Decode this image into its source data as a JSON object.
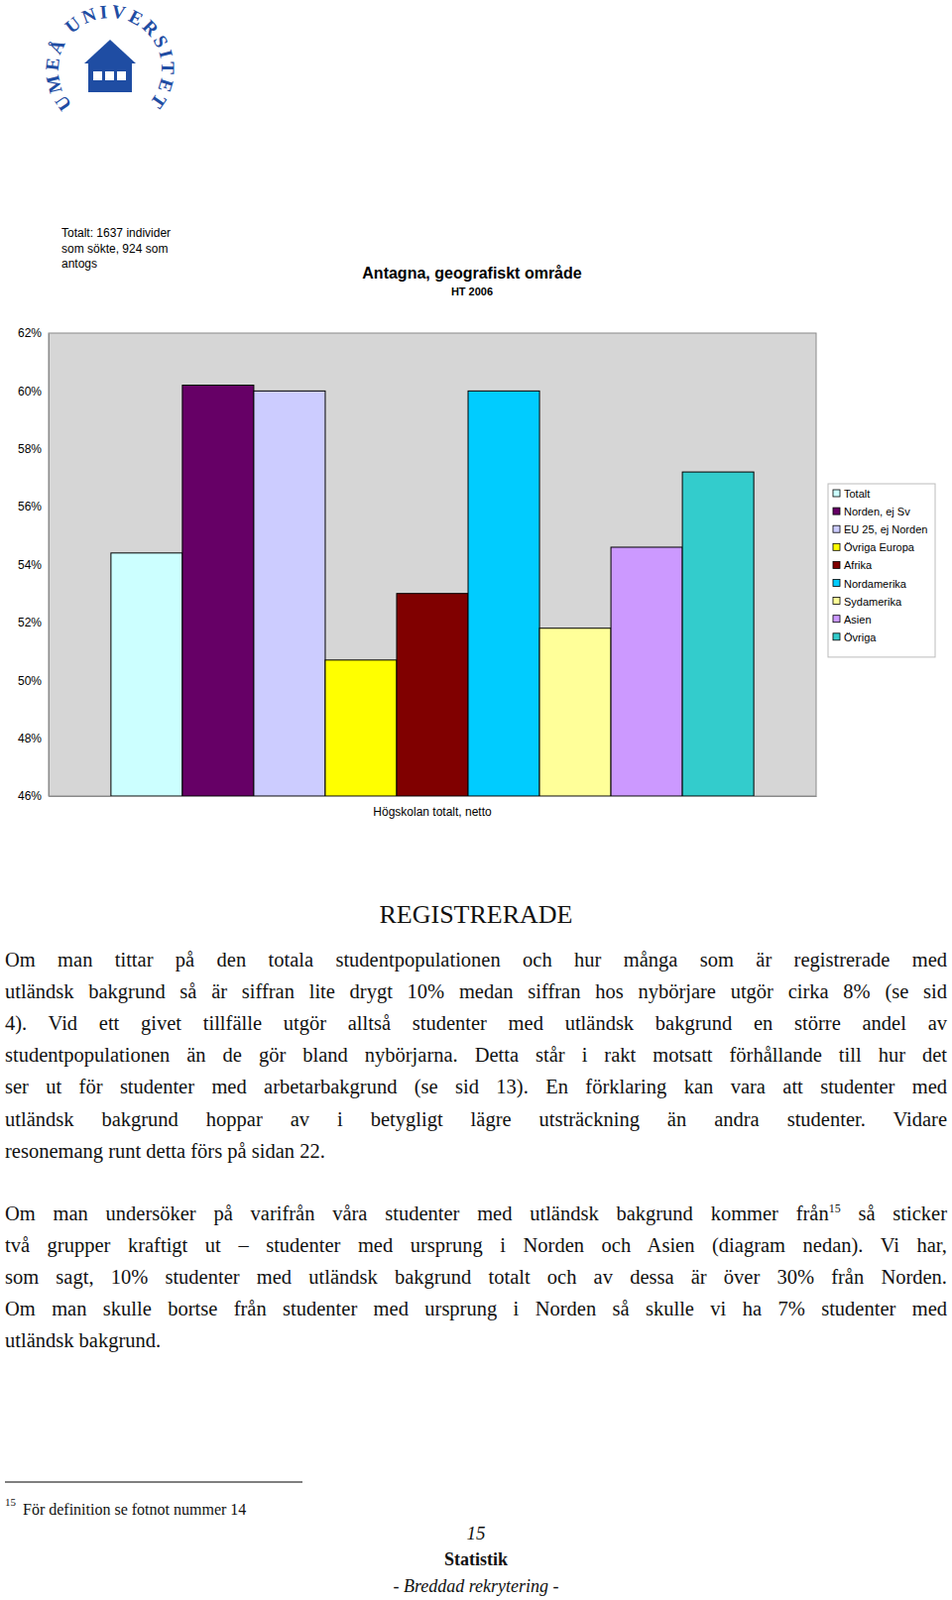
{
  "header": {
    "logo_text": "UMEÅ UNIVERSITET"
  },
  "chart_data": {
    "type": "bar",
    "title": "Antagna, geografiskt område",
    "subtitle": "HT 2006",
    "annotations": [
      "Totalt: 1637 individer",
      "som sökte, 924 som",
      "antogs"
    ],
    "categories": [
      "Högskolan totalt, netto"
    ],
    "series": [
      {
        "name": "Totalt",
        "color": "#ccffff",
        "values": [
          54.4
        ]
      },
      {
        "name": "Norden, ej Sv",
        "color": "#660066",
        "values": [
          60.2
        ]
      },
      {
        "name": "EU 25, ej Norden",
        "color": "#ccccff",
        "values": [
          60.0
        ]
      },
      {
        "name": "Övriga Europa",
        "color": "#ffff00",
        "values": [
          50.7
        ]
      },
      {
        "name": "Afrika",
        "color": "#800000",
        "values": [
          53.0
        ]
      },
      {
        "name": "Nordamerika",
        "color": "#00ccff",
        "values": [
          60.0
        ]
      },
      {
        "name": "Sydamerika",
        "color": "#ffff99",
        "values": [
          51.8
        ]
      },
      {
        "name": "Asien",
        "color": "#cc99ff",
        "values": [
          54.6
        ]
      },
      {
        "name": "Övriga",
        "color": "#33cccc",
        "values": [
          57.2
        ]
      }
    ],
    "ylim": [
      46,
      62
    ],
    "yticks": [
      {
        "value": 46,
        "label": "46%"
      },
      {
        "value": 48,
        "label": "48%"
      },
      {
        "value": 50,
        "label": "50%"
      },
      {
        "value": 52,
        "label": "52%"
      },
      {
        "value": 54,
        "label": "54%"
      },
      {
        "value": 56,
        "label": "56%"
      },
      {
        "value": 58,
        "label": "58%"
      },
      {
        "value": 60,
        "label": "60%"
      },
      {
        "value": 62,
        "label": "62%"
      }
    ],
    "grid": false,
    "legend": "right"
  },
  "document": {
    "heading": "REGISTRERADE",
    "paragraph_1": [
      "Om man tittar på den totala studentpopulationen och hur många som är registrerade med",
      "utländsk bakgrund så är siffran lite drygt 10% medan siffran hos nybörjare utgör cirka 8% (se sid",
      "4). Vid ett givet tillfälle utgör alltså studenter med utländsk bakgrund en större andel av",
      "studentpopulationen än de gör bland nybörjarna. Detta står i rakt motsatt förhållande till hur det",
      "ser ut för studenter med arbetarbakgrund (se sid 13). En förklaring kan vara att studenter med",
      "utländsk bakgrund hoppar av i betygligt lägre utsträckning än andra studenter. Vidare",
      "resonemang runt detta förs på sidan 22."
    ],
    "paragraph_2": {
      "first_line": {
        "before": "Om man undersöker på varifrån våra studenter med utländsk bakgrund kommer från",
        "footnote_ref": "15",
        "after": " så sticker"
      },
      "lines": [
        "två grupper kraftigt ut – studenter med ursprung i Norden och Asien (diagram nedan). Vi har,",
        "som sagt, 10% studenter med utländsk bakgrund totalt och av dessa är över 30% från Norden.",
        "Om man skulle bortse från studenter med ursprung i Norden så skulle vi ha 7% studenter med",
        "utländsk bakgrund."
      ]
    },
    "footnote": {
      "number": "15",
      "text": "För definition se fotnot nummer 14"
    },
    "footer": {
      "page": "15",
      "section": "Statistik",
      "subtitle": "- Breddad rekrytering -"
    }
  }
}
